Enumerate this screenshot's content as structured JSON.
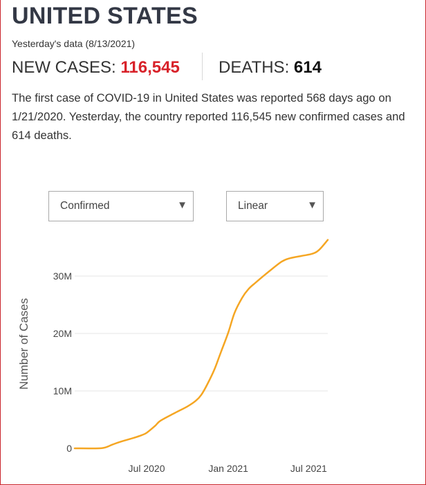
{
  "header": {
    "title": "UNITED STATES",
    "subtitle": "Yesterday's data (8/13/2021)",
    "cases_label": "NEW CASES:",
    "cases_value": "116,545",
    "deaths_label": "DEATHS:",
    "deaths_value": "614",
    "description": "The first case of COVID-19 in United States was reported 568 days ago on 1/21/2020. Yesterday, the country reported 116,545 new confirmed cases and 614 deaths."
  },
  "controls": {
    "metric_selected": "Confirmed",
    "scale_selected": "Linear",
    "dropdown_icon": "triangle-down-icon"
  },
  "colors": {
    "accent_red": "#d8222a",
    "line": "#f5a623",
    "grid": "#e6e6e6",
    "text_dark": "#333845"
  },
  "chart_data": {
    "type": "line",
    "title": "",
    "xlabel": "",
    "ylabel": "Number of Cases",
    "ylim": [
      0,
      36500000
    ],
    "xlim": [
      "2020-01-21",
      "2021-08-13"
    ],
    "grid": true,
    "yticks": [
      {
        "value": 0,
        "label": "0"
      },
      {
        "value": 10000000,
        "label": "10M"
      },
      {
        "value": 20000000,
        "label": "20M"
      },
      {
        "value": 30000000,
        "label": "30M"
      }
    ],
    "xticks": [
      {
        "date": "2020-07-01",
        "label": "Jul 2020"
      },
      {
        "date": "2021-01-01",
        "label": "Jan 2021"
      },
      {
        "date": "2021-07-01",
        "label": "Jul 2021"
      }
    ],
    "series": [
      {
        "points": [
          [
            "2020-01-21",
            1
          ],
          [
            "2020-03-15",
            3000
          ],
          [
            "2020-04-01",
            200000
          ],
          [
            "2020-04-15",
            650000
          ],
          [
            "2020-05-01",
            1100000
          ],
          [
            "2020-06-01",
            1800000
          ],
          [
            "2020-06-20",
            2300000
          ],
          [
            "2020-07-01",
            2700000
          ],
          [
            "2020-07-20",
            3900000
          ],
          [
            "2020-08-01",
            4800000
          ],
          [
            "2020-09-01",
            6100000
          ],
          [
            "2020-10-01",
            7300000
          ],
          [
            "2020-10-20",
            8300000
          ],
          [
            "2020-11-01",
            9300000
          ],
          [
            "2020-11-15",
            11200000
          ],
          [
            "2020-12-01",
            13800000
          ],
          [
            "2020-12-15",
            16700000
          ],
          [
            "2021-01-01",
            20200000
          ],
          [
            "2021-01-15",
            23600000
          ],
          [
            "2021-02-01",
            26200000
          ],
          [
            "2021-02-15",
            27700000
          ],
          [
            "2021-03-01",
            28700000
          ],
          [
            "2021-04-01",
            30700000
          ],
          [
            "2021-05-01",
            32500000
          ],
          [
            "2021-05-20",
            33100000
          ],
          [
            "2021-06-15",
            33500000
          ],
          [
            "2021-07-10",
            33900000
          ],
          [
            "2021-07-25",
            34600000
          ],
          [
            "2021-08-13",
            36300000
          ]
        ]
      }
    ]
  }
}
